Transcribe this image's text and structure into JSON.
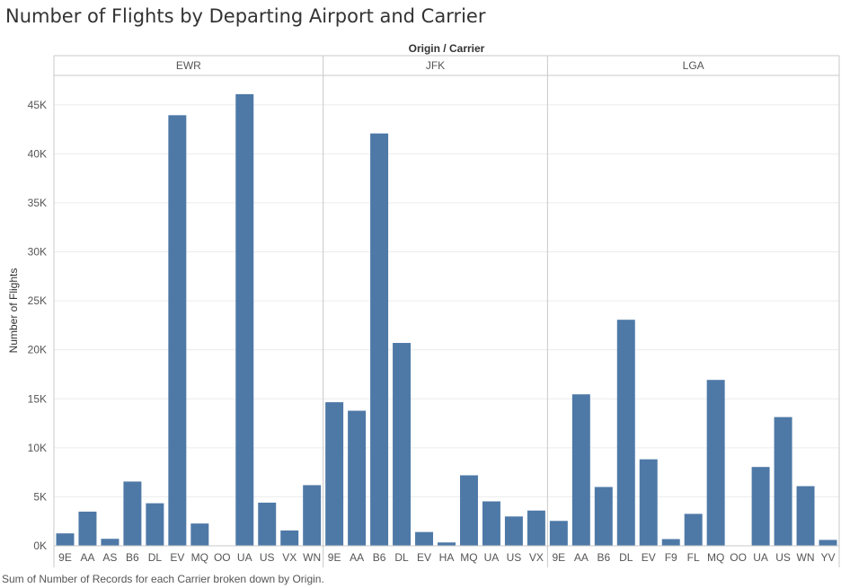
{
  "title": "Number of Flights by Departing Airport and Carrier",
  "caption": "Sum of Number of Records for each Carrier broken down by Origin.",
  "colors": {
    "bar": "#4e79a7",
    "grid": "#ececec",
    "divider": "#c8c8c8",
    "text": "#555555"
  },
  "chart_data": {
    "type": "bar",
    "title": "Number of Flights by Departing Airport and Carrier",
    "column_header": "Origin / Carrier",
    "ylabel": "Number of Flights",
    "ylim": [
      0,
      48000
    ],
    "yticks": [
      0,
      5000,
      10000,
      15000,
      20000,
      25000,
      30000,
      35000,
      40000,
      45000
    ],
    "ytick_labels": [
      "0K",
      "5K",
      "10K",
      "15K",
      "20K",
      "25K",
      "30K",
      "35K",
      "40K",
      "45K"
    ],
    "grid": true,
    "panels": [
      {
        "name": "EWR",
        "categories": [
          "9E",
          "AA",
          "AS",
          "B6",
          "DL",
          "EV",
          "MQ",
          "OO",
          "UA",
          "US",
          "VX",
          "WN"
        ],
        "values": [
          1268,
          3487,
          714,
          6557,
          4342,
          43939,
          2276,
          6,
          46087,
          4405,
          1566,
          6188
        ]
      },
      {
        "name": "JFK",
        "categories": [
          "9E",
          "AA",
          "B6",
          "DL",
          "EV",
          "HA",
          "MQ",
          "UA",
          "US",
          "VX"
        ],
        "values": [
          14651,
          13783,
          42076,
          20701,
          1408,
          342,
          7193,
          4534,
          2995,
          3596
        ]
      },
      {
        "name": "LGA",
        "categories": [
          "9E",
          "AA",
          "B6",
          "DL",
          "EV",
          "F9",
          "FL",
          "MQ",
          "OO",
          "UA",
          "US",
          "WN",
          "YV"
        ],
        "values": [
          2541,
          15459,
          6002,
          23067,
          8826,
          685,
          3260,
          16928,
          26,
          8044,
          13136,
          6087,
          601
        ]
      }
    ]
  }
}
